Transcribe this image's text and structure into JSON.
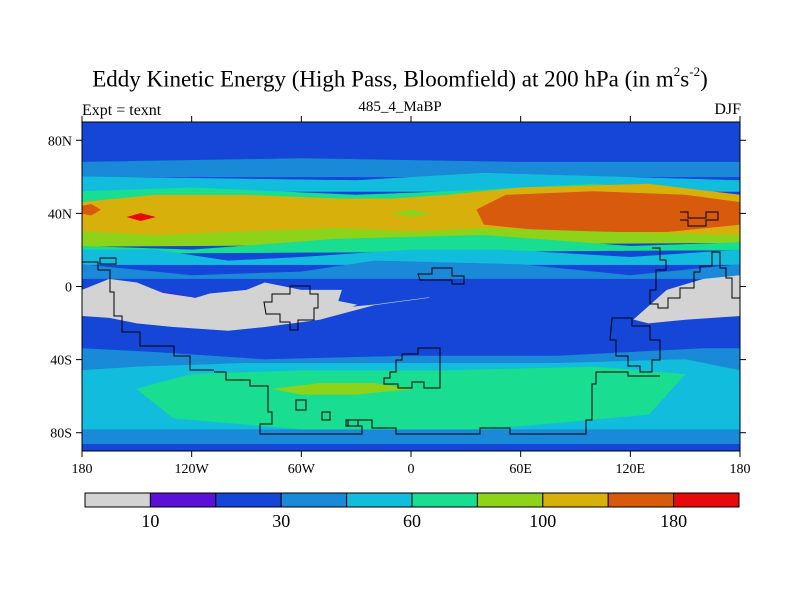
{
  "header": {
    "title_main": "Eddy Kinetic Energy (High Pass, Bloomfield) at 200 hPa (in m",
    "title_sup1": "2",
    "title_mid": "s",
    "title_sup2": "-2",
    "title_end": ")",
    "subtitle": "485_4_MaBP",
    "left_label": "Expt = texnt",
    "right_label": "DJF"
  },
  "chart_data": {
    "type": "heatmap",
    "title": "Eddy Kinetic Energy (High Pass, Bloomfield) at 200 hPa (in m^2 s^-2)",
    "subtitle": "485_4_MaBP",
    "season": "DJF",
    "experiment": "texnt",
    "x_range": [
      -180,
      180
    ],
    "y_range": [
      -90,
      90
    ],
    "x_ticks": [
      {
        "value": -180,
        "label": "180"
      },
      {
        "value": -120,
        "label": "120W"
      },
      {
        "value": -60,
        "label": "60W"
      },
      {
        "value": 0,
        "label": "0"
      },
      {
        "value": 60,
        "label": "60E"
      },
      {
        "value": 120,
        "label": "120E"
      },
      {
        "value": 180,
        "label": "180"
      }
    ],
    "y_ticks": [
      {
        "value": 80,
        "label": "80N"
      },
      {
        "value": 40,
        "label": "40N"
      },
      {
        "value": 0,
        "label": "0"
      },
      {
        "value": -40,
        "label": "40S"
      },
      {
        "value": -80,
        "label": "80S"
      }
    ],
    "colorbar": {
      "colors": [
        "#d3d3d3",
        "#5b10d8",
        "#1546d8",
        "#1a8ad8",
        "#12bcdc",
        "#19dd90",
        "#8cd31a",
        "#d8b00c",
        "#d85a0c",
        "#e80a0a"
      ],
      "labels": [
        {
          "boundary": 1,
          "label": "10"
        },
        {
          "boundary": 3,
          "label": "30"
        },
        {
          "boundary": 5,
          "label": "60"
        },
        {
          "boundary": 7,
          "label": "100"
        },
        {
          "boundary": 9,
          "label": "180"
        }
      ]
    },
    "regions": [
      {
        "name": "polar-north",
        "level": 2,
        "points": [
          [
            -180,
            90
          ],
          [
            180,
            90
          ],
          [
            180,
            68
          ],
          [
            -180,
            68
          ]
        ]
      },
      {
        "name": "north-band-level3",
        "level": 3,
        "points": [
          [
            -180,
            68
          ],
          [
            -60,
            70
          ],
          [
            60,
            68
          ],
          [
            180,
            68
          ],
          [
            180,
            60
          ],
          [
            -180,
            60
          ]
        ]
      },
      {
        "name": "north-band-level4",
        "level": 4,
        "points": [
          [
            -180,
            60
          ],
          [
            -30,
            58
          ],
          [
            40,
            62
          ],
          [
            180,
            58
          ],
          [
            180,
            52
          ],
          [
            -180,
            52
          ]
        ]
      },
      {
        "name": "north-band-level5",
        "level": 5,
        "points": [
          [
            -180,
            52
          ],
          [
            -120,
            54
          ],
          [
            -30,
            50
          ],
          [
            20,
            52
          ],
          [
            100,
            56
          ],
          [
            180,
            50
          ],
          [
            180,
            44
          ],
          [
            -180,
            44
          ]
        ]
      },
      {
        "name": "north-band-level6",
        "level": 6,
        "points": [
          [
            -180,
            44
          ],
          [
            180,
            44
          ],
          [
            180,
            42
          ],
          [
            -180,
            42
          ]
        ]
      },
      {
        "name": "jet-atlantic-level7",
        "level": 7,
        "points": [
          [
            -180,
            46
          ],
          [
            -140,
            50
          ],
          [
            -90,
            50
          ],
          [
            -40,
            48
          ],
          [
            -10,
            48
          ],
          [
            20,
            50
          ],
          [
            60,
            54
          ],
          [
            130,
            56
          ],
          [
            180,
            50
          ],
          [
            180,
            26
          ],
          [
            120,
            24
          ],
          [
            70,
            28
          ],
          [
            30,
            28
          ],
          [
            0,
            30
          ],
          [
            -40,
            32
          ],
          [
            -90,
            30
          ],
          [
            -140,
            28
          ],
          [
            -180,
            30
          ]
        ]
      },
      {
        "name": "jet-pacific-level8",
        "level": 8,
        "points": [
          [
            36,
            42
          ],
          [
            52,
            50
          ],
          [
            100,
            52
          ],
          [
            150,
            50
          ],
          [
            180,
            46
          ],
          [
            180,
            34
          ],
          [
            140,
            30
          ],
          [
            80,
            30
          ],
          [
            40,
            34
          ]
        ]
      },
      {
        "name": "jet-atlantic-core-level8",
        "level": 8,
        "points": [
          [
            -180,
            44
          ],
          [
            -175,
            45
          ],
          [
            -170,
            42
          ],
          [
            -175,
            39
          ],
          [
            -180,
            40
          ]
        ]
      },
      {
        "name": "jet-atlantic-core2-level9",
        "level": 9,
        "points": [
          [
            -155,
            38
          ],
          [
            -148,
            40
          ],
          [
            -140,
            38
          ],
          [
            -148,
            36
          ]
        ]
      },
      {
        "name": "jet-north-level6-patch",
        "level": 6,
        "points": [
          [
            -180,
            30
          ],
          [
            -140,
            28
          ],
          [
            -90,
            30
          ],
          [
            -40,
            32
          ],
          [
            0,
            30
          ],
          [
            40,
            32
          ],
          [
            100,
            30
          ],
          [
            180,
            28
          ],
          [
            180,
            24
          ],
          [
            -180,
            22
          ]
        ]
      },
      {
        "name": "subtropic-level5",
        "level": 5,
        "points": [
          [
            -180,
            22
          ],
          [
            -120,
            20
          ],
          [
            -40,
            26
          ],
          [
            40,
            28
          ],
          [
            120,
            22
          ],
          [
            180,
            24
          ],
          [
            180,
            20
          ],
          [
            -180,
            18
          ]
        ]
      },
      {
        "name": "tropics-level4",
        "level": 4,
        "points": [
          [
            -180,
            20
          ],
          [
            -140,
            20
          ],
          [
            -100,
            14
          ],
          [
            -60,
            16
          ],
          [
            0,
            20
          ],
          [
            50,
            20
          ],
          [
            120,
            16
          ],
          [
            180,
            20
          ],
          [
            180,
            12
          ],
          [
            -180,
            12
          ]
        ]
      },
      {
        "name": "tropics-level3",
        "level": 3,
        "points": [
          [
            -180,
            12
          ],
          [
            -120,
            6
          ],
          [
            -60,
            8
          ],
          [
            -20,
            14
          ],
          [
            60,
            12
          ],
          [
            120,
            6
          ],
          [
            180,
            12
          ],
          [
            180,
            4
          ],
          [
            -180,
            4
          ]
        ]
      },
      {
        "name": "equator-level2",
        "level": 2,
        "points": [
          [
            -180,
            4
          ],
          [
            180,
            4
          ],
          [
            180,
            -34
          ],
          [
            -180,
            -34
          ]
        ]
      },
      {
        "name": "tropics-low-west",
        "level": 1,
        "points": [
          [
            -180,
            -2
          ],
          [
            -160,
            0
          ],
          [
            -130,
            -4
          ],
          [
            -100,
            -10
          ],
          [
            -70,
            -12
          ],
          [
            -50,
            -8
          ],
          [
            -40,
            -4
          ],
          [
            -60,
            -2
          ],
          [
            -100,
            -6
          ],
          [
            -140,
            -6
          ],
          [
            -180,
            -4
          ]
        ]
      },
      {
        "name": "south-level3",
        "level": 3,
        "points": [
          [
            -180,
            -34
          ],
          [
            -140,
            -36
          ],
          [
            -80,
            -40
          ],
          [
            0,
            -38
          ],
          [
            80,
            -38
          ],
          [
            160,
            -34
          ],
          [
            180,
            -34
          ],
          [
            180,
            -86
          ],
          [
            -180,
            -86
          ]
        ]
      },
      {
        "name": "south-level4",
        "level": 4,
        "points": [
          [
            -180,
            -46
          ],
          [
            -150,
            -44
          ],
          [
            -90,
            -42
          ],
          [
            0,
            -42
          ],
          [
            80,
            -42
          ],
          [
            150,
            -40
          ],
          [
            180,
            -46
          ],
          [
            180,
            -78
          ],
          [
            -180,
            -78
          ]
        ]
      },
      {
        "name": "south-level5",
        "level": 5,
        "points": [
          [
            -150,
            -56
          ],
          [
            -120,
            -48
          ],
          [
            -60,
            -46
          ],
          [
            20,
            -46
          ],
          [
            100,
            -44
          ],
          [
            150,
            -48
          ],
          [
            130,
            -70
          ],
          [
            40,
            -78
          ],
          [
            -60,
            -78
          ],
          [
            -130,
            -72
          ]
        ]
      },
      {
        "name": "south-level6",
        "level": 6,
        "points": [
          [
            -75,
            -56
          ],
          [
            -50,
            -53
          ],
          [
            -20,
            -53
          ],
          [
            0,
            -56
          ],
          [
            -30,
            -59
          ],
          [
            -60,
            -59
          ]
        ]
      },
      {
        "name": "gray-africa-tropics",
        "level": 0,
        "points": [
          [
            -180,
            -2
          ],
          [
            -165,
            4
          ],
          [
            -150,
            2
          ],
          [
            -130,
            -6
          ],
          [
            -100,
            -12
          ],
          [
            -70,
            -14
          ],
          [
            -50,
            -12
          ],
          [
            -40,
            -8
          ],
          [
            -38,
            -2
          ],
          [
            -60,
            -2
          ],
          [
            -80,
            2
          ],
          [
            -90,
            -2
          ],
          [
            -110,
            -4
          ],
          [
            -130,
            -10
          ],
          [
            -150,
            -10
          ],
          [
            -180,
            -14
          ]
        ]
      },
      {
        "name": "gray-americas-tropics",
        "level": 0,
        "points": [
          [
            -180,
            -2
          ],
          [
            -160,
            0
          ],
          [
            -120,
            -6
          ],
          [
            -100,
            -14
          ],
          [
            -60,
            -14
          ],
          [
            -20,
            -10
          ],
          [
            10,
            -6
          ],
          [
            -20,
            -10
          ],
          [
            -50,
            -18
          ],
          [
            -80,
            -22
          ],
          [
            -110,
            -22
          ],
          [
            -150,
            -18
          ],
          [
            -180,
            -16
          ]
        ]
      },
      {
        "name": "gray-australia",
        "level": 0,
        "points": [
          [
            122,
            -18
          ],
          [
            140,
            -2
          ],
          [
            160,
            4
          ],
          [
            180,
            6
          ],
          [
            180,
            -16
          ],
          [
            150,
            -18
          ],
          [
            130,
            -20
          ]
        ]
      },
      {
        "name": "gray-america-south",
        "level": 0,
        "points": [
          [
            -180,
            -4
          ],
          [
            -178,
            -12
          ],
          [
            -170,
            -16
          ],
          [
            -150,
            -20
          ],
          [
            -130,
            -22
          ],
          [
            -100,
            -24
          ],
          [
            -80,
            -22
          ],
          [
            -60,
            -18
          ],
          [
            -40,
            -14
          ],
          [
            -30,
            -10
          ],
          [
            -50,
            -6
          ],
          [
            -70,
            -8
          ],
          [
            -100,
            -10
          ],
          [
            -120,
            -6
          ],
          [
            -150,
            -4
          ],
          [
            -170,
            -2
          ]
        ]
      },
      {
        "name": "blue-n-strip",
        "level": 6,
        "points": [
          [
            -10,
            40
          ],
          [
            0,
            42
          ],
          [
            10,
            40
          ],
          [
            0,
            38
          ]
        ]
      }
    ]
  }
}
